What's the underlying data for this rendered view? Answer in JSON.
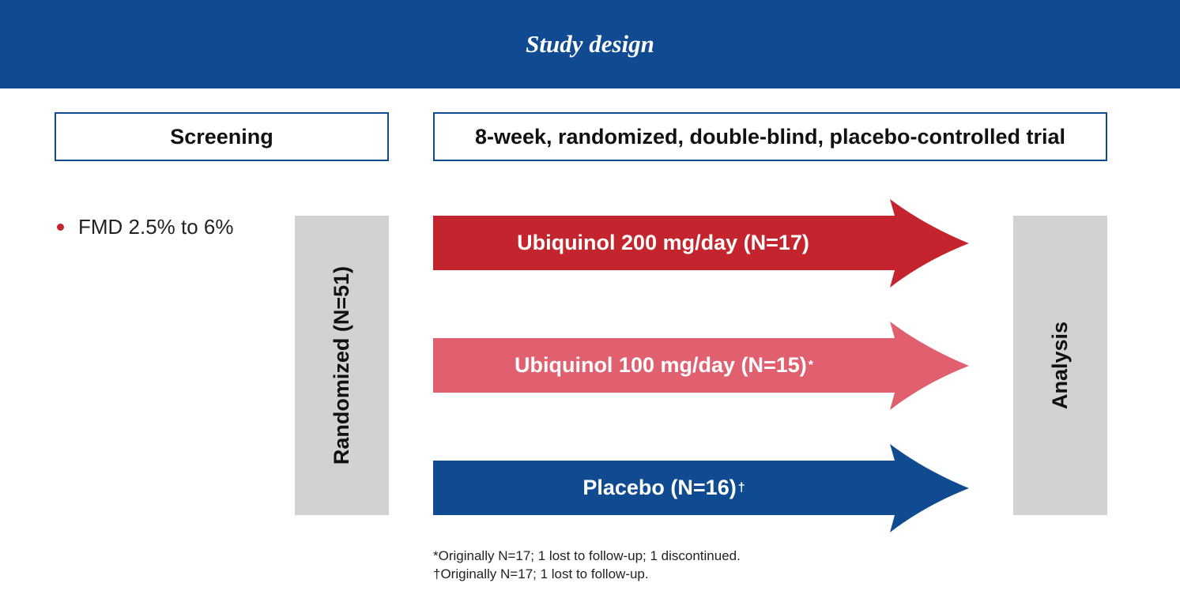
{
  "title": "Study design",
  "phases": {
    "screening": "Screening",
    "trial": "8-week, randomized, double-blind, placebo-controlled trial"
  },
  "criteria": [
    "FMD 2.5% to 6%"
  ],
  "randomized_label": "Randomized (N=51)",
  "analysis_label": "Analysis",
  "arms": [
    {
      "label": "Ubiquinol 200 mg/day (N=17)",
      "mark": "",
      "color": "#c4242d"
    },
    {
      "label": "Ubiquinol 100 mg/day (N=15)",
      "mark": "*",
      "color": "#e06070"
    },
    {
      "label": "Placebo (N=16)",
      "mark": "†",
      "color": "#104b91"
    }
  ],
  "footnotes": [
    "*Originally N=17; 1 lost to follow-up; 1 discontinued.",
    "†Originally N=17; 1 lost to follow-up."
  ]
}
